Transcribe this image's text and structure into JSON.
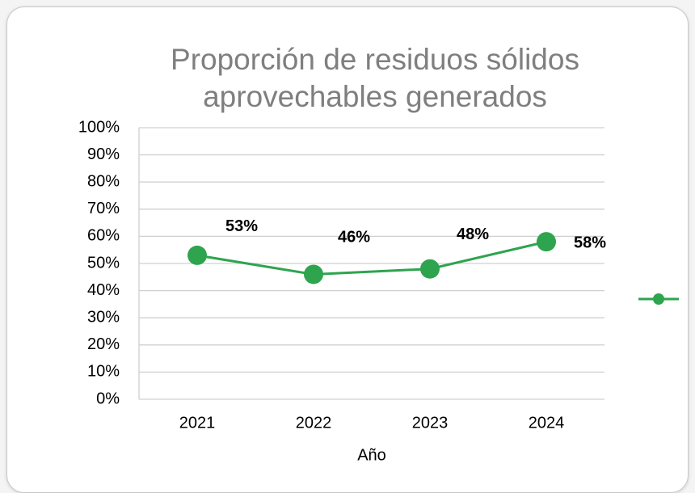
{
  "chart_data": {
    "type": "line",
    "title": "Proporción de residuos sólidos aprovechables generados",
    "x_label": "Año",
    "categories": [
      "2021",
      "2022",
      "2023",
      "2024"
    ],
    "values": [
      53,
      46,
      48,
      58
    ],
    "value_labels": [
      "53%",
      "46%",
      "48%",
      "58%"
    ],
    "color": "#2ea44f",
    "ylim": [
      0,
      100
    ],
    "yticks": [
      {
        "value": 0,
        "label": "0%"
      },
      {
        "value": 10,
        "label": "10%"
      },
      {
        "value": 20,
        "label": "20%"
      },
      {
        "value": 30,
        "label": "30%"
      },
      {
        "value": 40,
        "label": "40%"
      },
      {
        "value": 50,
        "label": "50%"
      },
      {
        "value": 60,
        "label": "60%"
      },
      {
        "value": 70,
        "label": "70%"
      },
      {
        "value": 80,
        "label": "80%"
      },
      {
        "value": 90,
        "label": "90%"
      },
      {
        "value": 100,
        "label": "100%"
      }
    ],
    "grid": true,
    "legend": "right"
  }
}
